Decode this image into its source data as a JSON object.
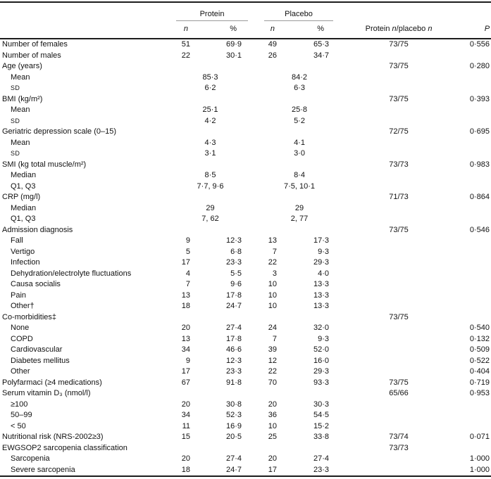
{
  "table": {
    "header": {
      "group_protein": "Protein",
      "group_placebo": "Placebo",
      "n_label": "n",
      "pct_label": "%",
      "ratio_label_parts": {
        "pre": "Protein ",
        "n1": "n",
        "mid": "/placebo ",
        "n2": "n"
      },
      "p_label": "P"
    },
    "rows": [
      {
        "label": "Number of females",
        "indent": 0,
        "pn": "51",
        "ppct": "69·9",
        "bn": "49",
        "bpct": "65·3",
        "ratio": "73/75",
        "p": "0·556"
      },
      {
        "label": "Number of males",
        "indent": 0,
        "pn": "22",
        "ppct": "30·1",
        "bn": "26",
        "bpct": "34·7",
        "ratio": "",
        "p": ""
      },
      {
        "label": "Age (years)",
        "indent": 0,
        "pn": "",
        "ppct": "",
        "bn": "",
        "bpct": "",
        "ratio": "73/75",
        "p": "0·280"
      },
      {
        "label": "Mean",
        "indent": 1,
        "span": true,
        "pspan": "85·3",
        "bspan": "84·2",
        "ratio": "",
        "p": ""
      },
      {
        "label": "SD",
        "indent": 1,
        "sc": true,
        "span": true,
        "pspan": "6·2",
        "bspan": "6·3",
        "ratio": "",
        "p": ""
      },
      {
        "label": "BMI (kg/m²)",
        "indent": 0,
        "pn": "",
        "ppct": "",
        "bn": "",
        "bpct": "",
        "ratio": "73/75",
        "p": "0·393"
      },
      {
        "label": "Mean",
        "indent": 1,
        "span": true,
        "pspan": "25·1",
        "bspan": "25·8",
        "ratio": "",
        "p": ""
      },
      {
        "label": "SD",
        "indent": 1,
        "sc": true,
        "span": true,
        "pspan": "4·2",
        "bspan": "5·2",
        "ratio": "",
        "p": ""
      },
      {
        "label": "Geriatric depression scale (0–15)",
        "indent": 0,
        "pn": "",
        "ppct": "",
        "bn": "",
        "bpct": "",
        "ratio": "72/75",
        "p": "0·695"
      },
      {
        "label": "Mean",
        "indent": 1,
        "span": true,
        "pspan": "4·3",
        "bspan": "4·1",
        "ratio": "",
        "p": ""
      },
      {
        "label": "SD",
        "indent": 1,
        "sc": true,
        "span": true,
        "pspan": "3·1",
        "bspan": "3·0",
        "ratio": "",
        "p": ""
      },
      {
        "label": "SMI (kg total muscle/m²)",
        "indent": 0,
        "pn": "",
        "ppct": "",
        "bn": "",
        "bpct": "",
        "ratio": "73/73",
        "p": "0·983"
      },
      {
        "label": "Median",
        "indent": 1,
        "span": true,
        "pspan": "8·5",
        "bspan": "8·4",
        "ratio": "",
        "p": ""
      },
      {
        "label": "Q1, Q3",
        "indent": 1,
        "span": true,
        "pspan": "7·7, 9·6",
        "bspan": "7·5, 10·1",
        "ratio": "",
        "p": ""
      },
      {
        "label": "CRP (mg/l)",
        "indent": 0,
        "pn": "",
        "ppct": "",
        "bn": "",
        "bpct": "",
        "ratio": "71/73",
        "p": "0·864"
      },
      {
        "label": "Median",
        "indent": 1,
        "span": true,
        "pspan": "29",
        "bspan": "29",
        "ratio": "",
        "p": ""
      },
      {
        "label": "Q1, Q3",
        "indent": 1,
        "span": true,
        "pspan": "7, 62",
        "bspan": "2, 77",
        "ratio": "",
        "p": ""
      },
      {
        "label": "Admission diagnosis",
        "indent": 0,
        "pn": "",
        "ppct": "",
        "bn": "",
        "bpct": "",
        "ratio": "73/75",
        "p": "0·546"
      },
      {
        "label": "Fall",
        "indent": 1,
        "pn": "9",
        "ppct": "12·3",
        "bn": "13",
        "bpct": "17·3",
        "ratio": "",
        "p": ""
      },
      {
        "label": "Vertigo",
        "indent": 1,
        "pn": "5",
        "ppct": "6·8",
        "bn": "7",
        "bpct": "9·3",
        "ratio": "",
        "p": ""
      },
      {
        "label": "Infection",
        "indent": 1,
        "pn": "17",
        "ppct": "23·3",
        "bn": "22",
        "bpct": "29·3",
        "ratio": "",
        "p": ""
      },
      {
        "label": "Dehydration/electrolyte fluctuations",
        "indent": 1,
        "pn": "4",
        "ppct": "5·5",
        "bn": "3",
        "bpct": "4·0",
        "ratio": "",
        "p": ""
      },
      {
        "label": "Causa socialis",
        "indent": 1,
        "pn": "7",
        "ppct": "9·6",
        "bn": "10",
        "bpct": "13·3",
        "ratio": "",
        "p": ""
      },
      {
        "label": "Pain",
        "indent": 1,
        "pn": "13",
        "ppct": "17·8",
        "bn": "10",
        "bpct": "13·3",
        "ratio": "",
        "p": ""
      },
      {
        "label": "Other†",
        "indent": 1,
        "pn": "18",
        "ppct": "24·7",
        "bn": "10",
        "bpct": "13·3",
        "ratio": "",
        "p": ""
      },
      {
        "label": "Co-morbidities‡",
        "indent": 0,
        "pn": "",
        "ppct": "",
        "bn": "",
        "bpct": "",
        "ratio": "73/75",
        "p": ""
      },
      {
        "label": "None",
        "indent": 1,
        "pn": "20",
        "ppct": "27·4",
        "bn": "24",
        "bpct": "32·0",
        "ratio": "",
        "p": "0·540"
      },
      {
        "label": "COPD",
        "indent": 1,
        "pn": "13",
        "ppct": "17·8",
        "bn": "7",
        "bpct": "9·3",
        "ratio": "",
        "p": "0·132"
      },
      {
        "label": "Cardiovascular",
        "indent": 1,
        "pn": "34",
        "ppct": "46·6",
        "bn": "39",
        "bpct": "52·0",
        "ratio": "",
        "p": "0·509"
      },
      {
        "label": "Diabetes mellitus",
        "indent": 1,
        "pn": "9",
        "ppct": "12·3",
        "bn": "12",
        "bpct": "16·0",
        "ratio": "",
        "p": "0·522"
      },
      {
        "label": "Other",
        "indent": 1,
        "pn": "17",
        "ppct": "23·3",
        "bn": "22",
        "bpct": "29·3",
        "ratio": "",
        "p": "0·404"
      },
      {
        "label": "Polyfarmaci (≥4 medications)",
        "indent": 0,
        "pn": "67",
        "ppct": "91·8",
        "bn": "70",
        "bpct": "93·3",
        "ratio": "73/75",
        "p": "0·719"
      },
      {
        "label": "Serum vitamin D₃ (nmol/l)",
        "indent": 0,
        "pn": "",
        "ppct": "",
        "bn": "",
        "bpct": "",
        "ratio": "65/66",
        "p": "0·953"
      },
      {
        "label": "≥100",
        "indent": 1,
        "pn": "20",
        "ppct": "30·8",
        "bn": "20",
        "bpct": "30·3",
        "ratio": "",
        "p": ""
      },
      {
        "label": "50–99",
        "indent": 1,
        "pn": "34",
        "ppct": "52·3",
        "bn": "36",
        "bpct": "54·5",
        "ratio": "",
        "p": ""
      },
      {
        "label": "< 50",
        "indent": 1,
        "pn": "11",
        "ppct": "16·9",
        "bn": "10",
        "bpct": "15·2",
        "ratio": "",
        "p": ""
      },
      {
        "label": "Nutritional risk (NRS-2002≥3)",
        "indent": 0,
        "pn": "15",
        "ppct": "20·5",
        "bn": "25",
        "bpct": "33·8",
        "ratio": "73/74",
        "p": "0·071"
      },
      {
        "label": "EWGSOP2 sarcopenia classification",
        "indent": 0,
        "pn": "",
        "ppct": "",
        "bn": "",
        "bpct": "",
        "ratio": "73/73",
        "p": ""
      },
      {
        "label": "Sarcopenia",
        "indent": 1,
        "pn": "20",
        "ppct": "27·4",
        "bn": "20",
        "bpct": "27·4",
        "ratio": "",
        "p": "1·000"
      },
      {
        "label": "Severe sarcopenia",
        "indent": 1,
        "pn": "18",
        "ppct": "24·7",
        "bn": "17",
        "bpct": "23·3",
        "ratio": "",
        "p": "1·000"
      }
    ]
  }
}
